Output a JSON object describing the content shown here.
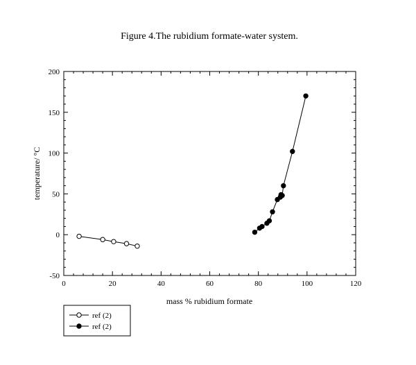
{
  "chart_data": {
    "type": "scatter",
    "title": "Figure 4.The rubidium formate-water system.",
    "xlabel": "mass % rubidium formate",
    "ylabel": "temperature/ °C",
    "xlim": [
      0,
      120
    ],
    "ylim": [
      -50,
      200
    ],
    "xticks": [
      0,
      20,
      40,
      60,
      80,
      100,
      120
    ],
    "yticks": [
      -50,
      0,
      50,
      100,
      150,
      200
    ],
    "grid": false,
    "legend_position": "bottom-left-outside",
    "series": [
      {
        "name": "ref (2)",
        "marker": "open-circle",
        "color": "#000000",
        "points": [
          [
            6.3,
            -2
          ],
          [
            16,
            -6
          ],
          [
            20.5,
            -8.5
          ],
          [
            25.8,
            -11
          ],
          [
            30.2,
            -14
          ]
        ]
      },
      {
        "name": "ref (2)",
        "marker": "filled-circle",
        "color": "#000000",
        "points": [
          [
            78.5,
            3
          ],
          [
            80.5,
            8
          ],
          [
            81.5,
            10
          ],
          [
            83.5,
            14
          ],
          [
            84.5,
            17
          ],
          [
            85.8,
            28
          ],
          [
            87.8,
            43
          ],
          [
            89,
            46
          ],
          [
            89.3,
            49
          ],
          [
            89.8,
            48
          ],
          [
            90.3,
            60
          ],
          [
            94,
            102
          ],
          [
            99.5,
            170
          ]
        ]
      }
    ]
  }
}
